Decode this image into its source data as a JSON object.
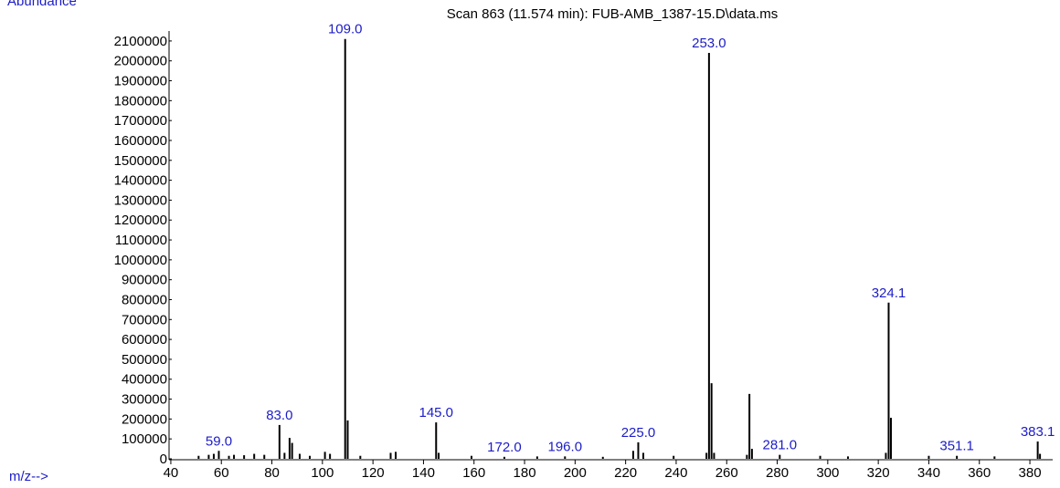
{
  "chart_data": {
    "type": "stick",
    "title": "Scan 863 (11.574 min): FUB-AMB_1387-15.D\\data.ms",
    "y_label": "Abundance",
    "x_label": "m/z-->",
    "color": "#000000",
    "label_color": "#1c1cc8",
    "xlim": [
      39.3,
      388.3
    ],
    "xticks": [
      40,
      60,
      80,
      100,
      120,
      140,
      160,
      180,
      200,
      220,
      240,
      260,
      280,
      300,
      320,
      340,
      360,
      380
    ],
    "ylim": [
      0,
      2150000
    ],
    "yticks": [
      0,
      100000,
      200000,
      300000,
      400000,
      500000,
      600000,
      700000,
      800000,
      900000,
      1000000,
      1100000,
      1200000,
      1300000,
      1400000,
      1500000,
      1600000,
      1700000,
      1800000,
      1900000,
      2000000,
      2100000
    ],
    "x": [
      51,
      55,
      57,
      59,
      63,
      65,
      69,
      73,
      77,
      83,
      85,
      87,
      88,
      91,
      95,
      101,
      103,
      109,
      110,
      115,
      127,
      129,
      145,
      146,
      159,
      172,
      185,
      196,
      211,
      223,
      225,
      227,
      239,
      252,
      253,
      254,
      255,
      268,
      269,
      270,
      281,
      297,
      308,
      323,
      324.1,
      325,
      340,
      351.1,
      366,
      383.1,
      384
    ],
    "values": [
      15000,
      20000,
      25000,
      40000,
      15000,
      20000,
      18000,
      25000,
      20000,
      170000,
      30000,
      105000,
      80000,
      25000,
      15000,
      35000,
      25000,
      2110000,
      193000,
      15000,
      30000,
      35000,
      183000,
      30000,
      15000,
      10000,
      12000,
      12000,
      10000,
      40000,
      83000,
      30000,
      15000,
      30000,
      2040000,
      380000,
      30000,
      20000,
      326000,
      50000,
      20000,
      15000,
      12000,
      30000,
      785000,
      206000,
      15000,
      15000,
      12000,
      87000,
      25000
    ],
    "x_labels": [
      null,
      null,
      null,
      "59.0",
      null,
      null,
      null,
      null,
      null,
      "83.0",
      null,
      null,
      null,
      null,
      null,
      null,
      null,
      "109.0",
      null,
      null,
      null,
      null,
      "145.0",
      null,
      null,
      "172.0",
      null,
      "196.0",
      null,
      null,
      "225.0",
      null,
      null,
      null,
      "253.0",
      null,
      null,
      null,
      null,
      null,
      "281.0",
      null,
      null,
      null,
      "324.1",
      null,
      null,
      "351.1",
      null,
      "383.1",
      null
    ]
  }
}
